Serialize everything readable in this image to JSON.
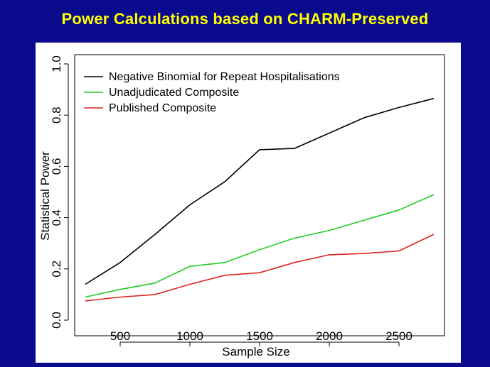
{
  "slide": {
    "title": "Power Calculations based on CHARM-Preserved"
  },
  "chart_data": {
    "type": "line",
    "title": "",
    "xlabel": "Sample Size",
    "ylabel": "Statistical Power",
    "xlim": [
      250,
      2750
    ],
    "ylim": [
      0,
      1
    ],
    "xticks": [
      500,
      1000,
      1500,
      2000,
      2500
    ],
    "yticks": [
      0.0,
      0.2,
      0.4,
      0.6,
      0.8,
      1.0
    ],
    "ytick_labels": [
      "0.0",
      "0.2",
      "0.4",
      "0.6",
      "0.8",
      "1.0"
    ],
    "grid": false,
    "legend_position": "top-left",
    "x": [
      250,
      500,
      750,
      1000,
      1250,
      1500,
      1750,
      2000,
      2250,
      2500,
      2750
    ],
    "series": [
      {
        "name": "Negative Binomial for Repeat Hospitalisations",
        "color": "#000000",
        "values": [
          0.14,
          0.225,
          0.335,
          0.45,
          0.54,
          0.665,
          0.67,
          0.73,
          0.79,
          0.83,
          0.865
        ]
      },
      {
        "name": "Unadjudicated Composite",
        "color": "#22cc22",
        "values": [
          0.09,
          0.12,
          0.145,
          0.21,
          0.225,
          0.275,
          0.32,
          0.35,
          0.39,
          0.43,
          0.49
        ]
      },
      {
        "name": "Published Composite",
        "color": "#dd2222",
        "values": [
          0.075,
          0.09,
          0.1,
          0.14,
          0.175,
          0.185,
          0.225,
          0.255,
          0.26,
          0.27,
          0.335
        ]
      }
    ]
  }
}
